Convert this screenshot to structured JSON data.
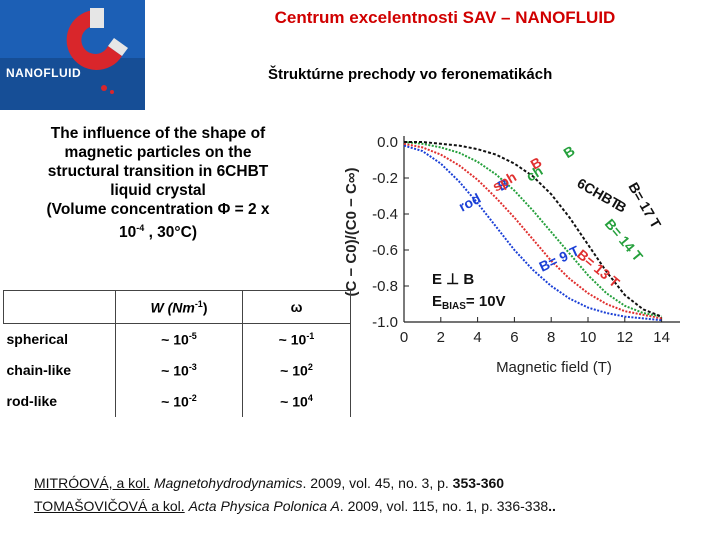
{
  "header": {
    "title": "Centrum excelentnosti SAV – NANOFLUID",
    "subtitle": "Štruktúrne prechody vo feronematikách",
    "logo_text": "NANOFLUID"
  },
  "description": {
    "line1": "The influence of the shape of",
    "line2": "magnetic particles on the",
    "line3": "structural transition in 6CHBT",
    "line4": "liquid crystal",
    "line5": "(Volume concentration Φ = 2 x",
    "line6_base": "10",
    "line6_exp": "-4",
    "line6_rest": " , 30°C)"
  },
  "table": {
    "head_w": "W (Nm",
    "head_w_exp": "-1",
    "head_w_close": ")",
    "head_omega": "ω",
    "rows": [
      {
        "label": "spherical",
        "w_base": "~ 10",
        "w_exp": "-5",
        "o_base": "~ 10",
        "o_exp": "-1"
      },
      {
        "label": "chain-like",
        "w_base": "~ 10",
        "w_exp": "-3",
        "o_base": "~ 10",
        "o_exp": "2"
      },
      {
        "label": "rod-like",
        "w_base": "~ 10",
        "w_exp": "-2",
        "o_base": "~ 10",
        "o_exp": "4"
      }
    ]
  },
  "chart_data": {
    "type": "line",
    "xlabel": "Magnetic field (T)",
    "ylabel": "(C − C0)/(C0 − C∞)",
    "xlim": [
      0,
      15
    ],
    "ylim": [
      -1.0,
      0.0
    ],
    "xticks": [
      "0",
      "2",
      "4",
      "6",
      "8",
      "10",
      "12",
      "14"
    ],
    "yticks": [
      "0.0",
      "-0.2",
      "-0.4",
      "-0.6",
      "-0.8",
      "-1.0"
    ],
    "annotation_perp": "E ⊥ B",
    "annotation_bias": "E",
    "annotation_bias_sub": "BIAS",
    "annotation_bias_value": "= 10V",
    "series": [
      {
        "color": "#1a3fd6",
        "x": [
          0,
          1,
          2,
          3,
          4,
          5,
          6,
          7,
          8,
          9,
          10,
          11,
          12,
          13,
          14
        ],
        "y": [
          -0.02,
          -0.05,
          -0.12,
          -0.22,
          -0.34,
          -0.47,
          -0.6,
          -0.71,
          -0.8,
          -0.87,
          -0.92,
          -0.95,
          -0.97,
          -0.98,
          -0.99
        ],
        "label_a": "rod",
        "label_b": "B",
        "label_c": "= 9 T"
      },
      {
        "color": "#e0302f",
        "x": [
          0,
          1,
          2,
          3,
          4,
          5,
          6,
          7,
          8,
          9,
          10,
          11,
          12,
          13,
          14
        ],
        "y": [
          -0.01,
          -0.03,
          -0.07,
          -0.13,
          -0.21,
          -0.31,
          -0.42,
          -0.54,
          -0.66,
          -0.76,
          -0.84,
          -0.9,
          -0.94,
          -0.96,
          -0.98
        ],
        "label_a": "sph",
        "label_b": "B",
        "label_c": "= 13 T"
      },
      {
        "color": "#25a03c",
        "x": [
          0,
          1,
          2,
          3,
          4,
          5,
          6,
          7,
          8,
          9,
          10,
          11,
          12,
          13,
          14
        ],
        "y": [
          0.0,
          -0.01,
          -0.03,
          -0.06,
          -0.11,
          -0.18,
          -0.27,
          -0.38,
          -0.5,
          -0.62,
          -0.74,
          -0.84,
          -0.91,
          -0.95,
          -0.97
        ],
        "label_a": "ch",
        "label_b": "B",
        "label_c": "= 14 T"
      },
      {
        "color": "#111111",
        "x": [
          0,
          1,
          2,
          3,
          4,
          5,
          6,
          7,
          8,
          9,
          10,
          11,
          12,
          13,
          14
        ],
        "y": [
          0.0,
          0.0,
          -0.01,
          -0.02,
          -0.04,
          -0.07,
          -0.12,
          -0.19,
          -0.29,
          -0.42,
          -0.57,
          -0.72,
          -0.85,
          -0.93,
          -0.97
        ],
        "label_a": "6CHBT",
        "label_b": "B",
        "label_c": "= 17 T"
      }
    ]
  },
  "references": {
    "r1_authors": "MITRÓOVÁ, a kol.",
    "r1_title": "Magnetohydrodynamics",
    "r1_rest": ". 2009, vol. 45, no. 3, p. ",
    "r1_pages": "353-360",
    "r2_authors": "TOMAŠOVIČOVÁ a kol.",
    "r2_title": "Acta Physica Polonica A",
    "r2_rest": ". 2009, vol. 115, no. 1, p. 336-338",
    "r2_end": ".."
  },
  "colors": {
    "title_red": "#d00000",
    "logo_blue": "#1c5fb5",
    "magnet_red": "#d9262b"
  }
}
